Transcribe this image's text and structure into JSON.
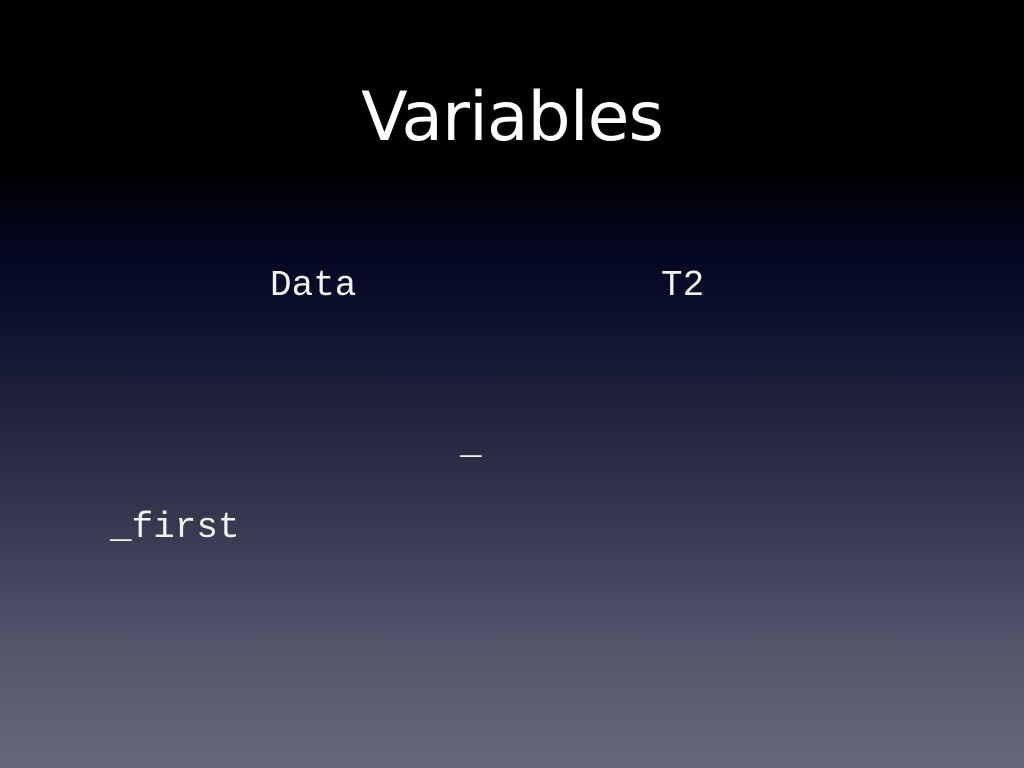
{
  "slide": {
    "title": "Variables",
    "terms": [
      {
        "text": "Data"
      },
      {
        "text": "T2"
      },
      {
        "text": "_"
      },
      {
        "text": "_first"
      }
    ]
  },
  "colors": {
    "background_top": "#000000",
    "background_mid": "#0b0f2c",
    "background_bottom": "#67677a",
    "text": "#ffffff"
  }
}
